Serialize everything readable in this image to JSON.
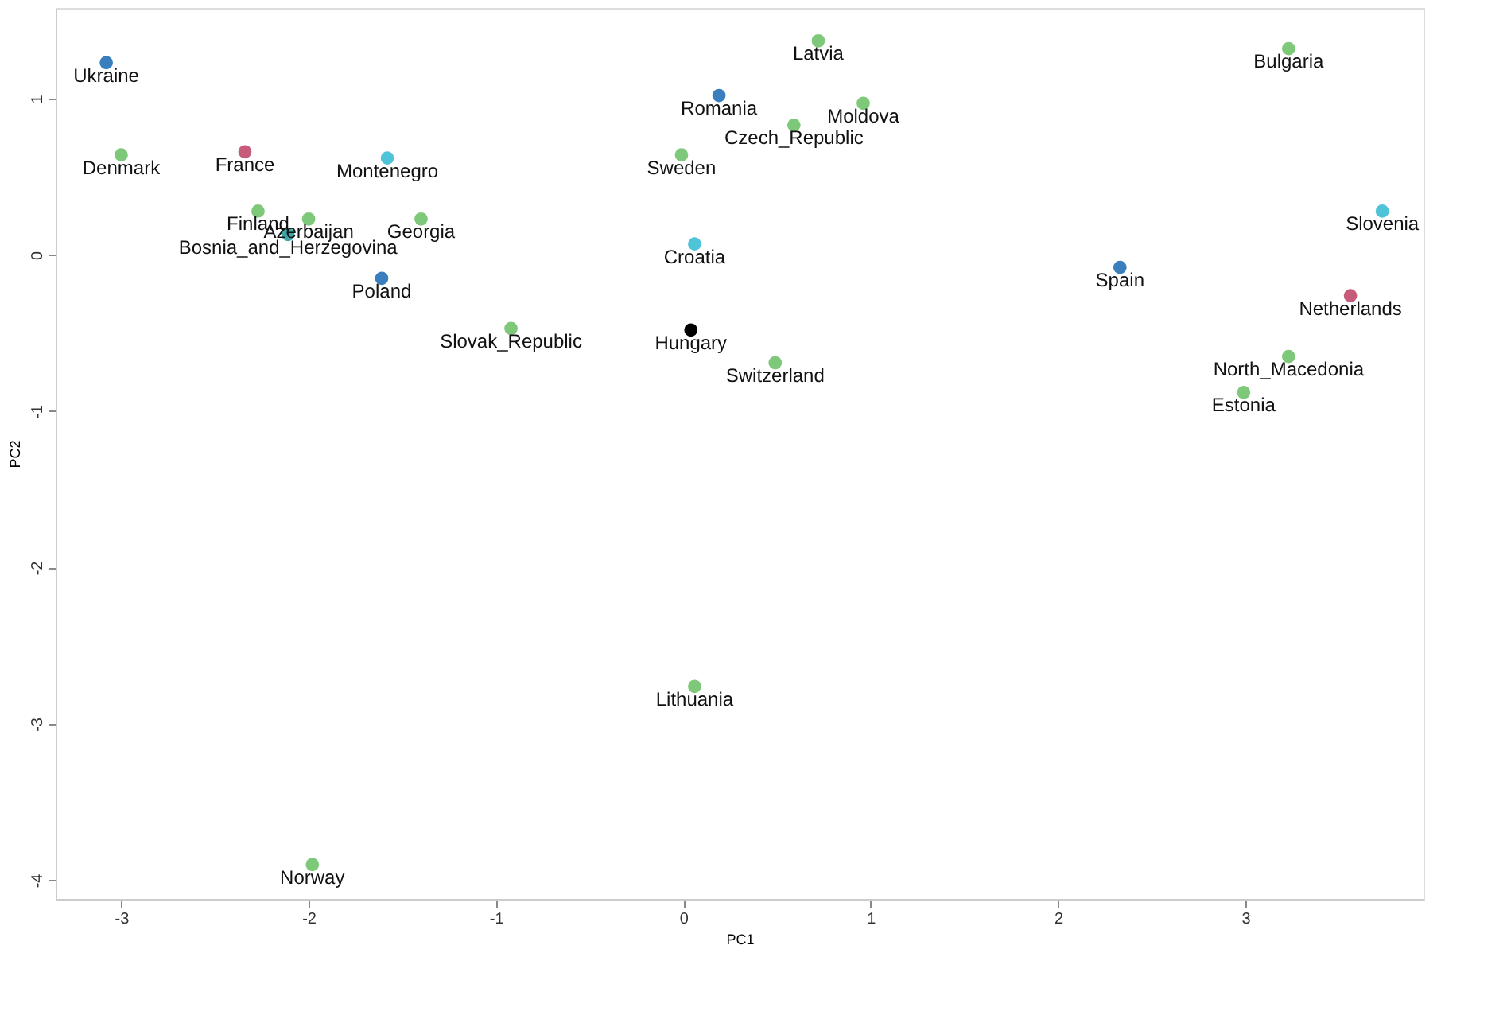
{
  "chart_data": {
    "type": "scatter",
    "xlabel": "PC1",
    "ylabel": "PC2",
    "x": [
      -3.08,
      -3.0,
      -2.34,
      -1.58,
      -2.27,
      -2.0,
      -2.11,
      -1.4,
      -1.61,
      -0.92,
      0.72,
      0.19,
      0.96,
      0.59,
      -0.01,
      0.06,
      0.04,
      0.49,
      3.23,
      3.73,
      2.33,
      3.56,
      3.23,
      2.99,
      0.06,
      -1.98
    ],
    "values": [
      1.23,
      0.64,
      0.66,
      0.62,
      0.28,
      0.23,
      0.13,
      0.23,
      -0.15,
      -0.47,
      1.37,
      1.02,
      0.97,
      0.83,
      0.64,
      0.07,
      -0.48,
      -0.69,
      1.32,
      0.28,
      -0.08,
      -0.26,
      -0.65,
      -0.88,
      -2.76,
      -3.9
    ],
    "colors": [
      "#3a7fbd",
      "#7ec87a",
      "#c75b7a",
      "#4fc3d8",
      "#7ec87a",
      "#7ec87a",
      "#3fa5a8",
      "#7ec87a",
      "#3a7fbd",
      "#7ec87a",
      "#7ec87a",
      "#3a7fbd",
      "#7ec87a",
      "#7ec87a",
      "#7ec87a",
      "#4fc3d8",
      "#000000",
      "#7ec87a",
      "#7ec87a",
      "#4fc3d8",
      "#3a7fbd",
      "#c75b7a",
      "#7ec87a",
      "#7ec87a",
      "#7ec87a",
      "#7ec87a"
    ],
    "annotations": [
      {
        "text": "Ukraine",
        "x": -3.08,
        "y": 1.23
      },
      {
        "text": "Denmark",
        "x": -3.0,
        "y": 0.64
      },
      {
        "text": "France",
        "x": -2.34,
        "y": 0.66
      },
      {
        "text": "Montenegro",
        "x": -1.58,
        "y": 0.62
      },
      {
        "text": "Finland",
        "x": -2.27,
        "y": 0.28
      },
      {
        "text": "Azerbaijan",
        "x": -2.0,
        "y": 0.23
      },
      {
        "text": "Bosnia_and_Herzegovina",
        "x": -2.11,
        "y": 0.13
      },
      {
        "text": "Georgia",
        "x": -1.4,
        "y": 0.23
      },
      {
        "text": "Poland",
        "x": -1.61,
        "y": -0.15
      },
      {
        "text": "Slovak_Republic",
        "x": -0.92,
        "y": -0.47
      },
      {
        "text": "Latvia",
        "x": 0.72,
        "y": 1.37
      },
      {
        "text": "Romania",
        "x": 0.19,
        "y": 1.02
      },
      {
        "text": "Moldova",
        "x": 0.96,
        "y": 0.97
      },
      {
        "text": "Czech_Republic",
        "x": 0.59,
        "y": 0.83
      },
      {
        "text": "Sweden",
        "x": -0.01,
        "y": 0.64
      },
      {
        "text": "Croatia",
        "x": 0.06,
        "y": 0.07
      },
      {
        "text": "Hungary",
        "x": 0.04,
        "y": -0.48
      },
      {
        "text": "Switzerland",
        "x": 0.49,
        "y": -0.69
      },
      {
        "text": "Bulgaria",
        "x": 3.23,
        "y": 1.32
      },
      {
        "text": "Slovenia",
        "x": 3.73,
        "y": 0.28
      },
      {
        "text": "Spain",
        "x": 2.33,
        "y": -0.08
      },
      {
        "text": "Netherlands",
        "x": 3.56,
        "y": -0.26
      },
      {
        "text": "North_Macedonia",
        "x": 3.23,
        "y": -0.65
      },
      {
        "text": "Estonia",
        "x": 2.99,
        "y": -0.88
      },
      {
        "text": "Lithuania",
        "x": 0.06,
        "y": -2.76
      },
      {
        "text": "Norway",
        "x": -1.98,
        "y": -3.9
      }
    ],
    "xlim": [
      -3.35,
      3.95
    ],
    "ylim": [
      -4.12,
      1.58
    ],
    "xticks": [
      -3,
      -2,
      -1,
      0,
      1,
      2,
      3
    ],
    "yticks": [
      -4,
      -3,
      -2,
      -1,
      0,
      1
    ],
    "grid": false
  }
}
